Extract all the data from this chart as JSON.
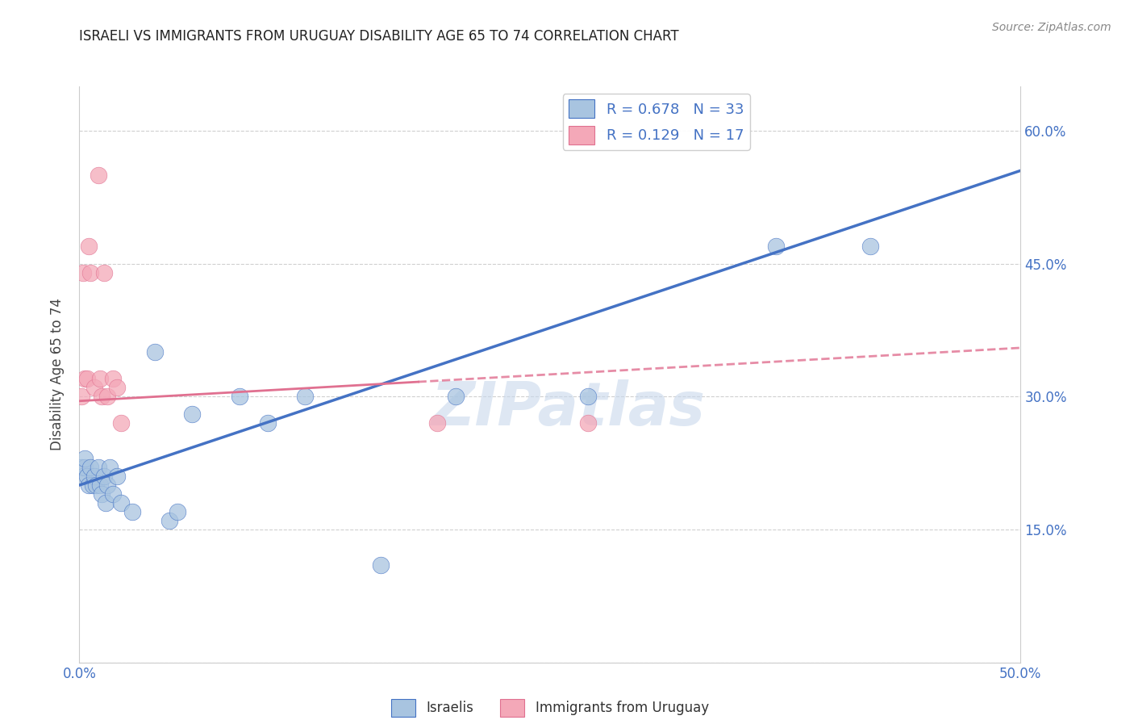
{
  "title": "ISRAELI VS IMMIGRANTS FROM URUGUAY DISABILITY AGE 65 TO 74 CORRELATION CHART",
  "source": "Source: ZipAtlas.com",
  "ylabel": "Disability Age 65 to 74",
  "legend_label_1": "Israelis",
  "legend_label_2": "Immigrants from Uruguay",
  "R1": 0.678,
  "N1": 33,
  "R2": 0.129,
  "N2": 17,
  "xlim": [
    0.0,
    0.5
  ],
  "ylim": [
    0.0,
    0.65
  ],
  "y_ticks": [
    0.0,
    0.15,
    0.3,
    0.45,
    0.6
  ],
  "y_tick_labels": [
    "",
    "15.0%",
    "30.0%",
    "45.0%",
    "60.0%"
  ],
  "x_ticks": [
    0.0,
    0.1,
    0.2,
    0.3,
    0.4,
    0.5
  ],
  "x_tick_labels": [
    "0.0%",
    "",
    "",
    "",
    "",
    "50.0%"
  ],
  "color_blue": "#a8c4e0",
  "color_pink": "#f4a8b8",
  "line_color_blue": "#4472c4",
  "line_color_pink": "#e07090",
  "watermark": "ZIPatlas",
  "blue_x": [
    0.001,
    0.002,
    0.003,
    0.003,
    0.004,
    0.005,
    0.006,
    0.007,
    0.008,
    0.009,
    0.01,
    0.011,
    0.012,
    0.013,
    0.014,
    0.015,
    0.016,
    0.018,
    0.02,
    0.022,
    0.028,
    0.04,
    0.06,
    0.085,
    0.1,
    0.12,
    0.16,
    0.2,
    0.37,
    0.42,
    0.048,
    0.052,
    0.27
  ],
  "blue_y": [
    0.22,
    0.21,
    0.22,
    0.23,
    0.21,
    0.2,
    0.22,
    0.2,
    0.21,
    0.2,
    0.22,
    0.2,
    0.19,
    0.21,
    0.18,
    0.2,
    0.22,
    0.19,
    0.21,
    0.18,
    0.17,
    0.35,
    0.28,
    0.3,
    0.27,
    0.3,
    0.11,
    0.3,
    0.47,
    0.47,
    0.16,
    0.17,
    0.3
  ],
  "pink_x": [
    0.001,
    0.002,
    0.003,
    0.004,
    0.005,
    0.006,
    0.008,
    0.01,
    0.011,
    0.012,
    0.013,
    0.015,
    0.018,
    0.02,
    0.022,
    0.19,
    0.27
  ],
  "pink_y": [
    0.3,
    0.44,
    0.32,
    0.32,
    0.47,
    0.44,
    0.31,
    0.55,
    0.32,
    0.3,
    0.44,
    0.3,
    0.32,
    0.31,
    0.27,
    0.27,
    0.27
  ],
  "blue_line_x0": 0.0,
  "blue_line_y0": 0.2,
  "blue_line_x1": 0.5,
  "blue_line_y1": 0.555,
  "pink_line_x0": 0.0,
  "pink_line_y0": 0.295,
  "pink_line_x1": 0.5,
  "pink_line_y1": 0.355
}
